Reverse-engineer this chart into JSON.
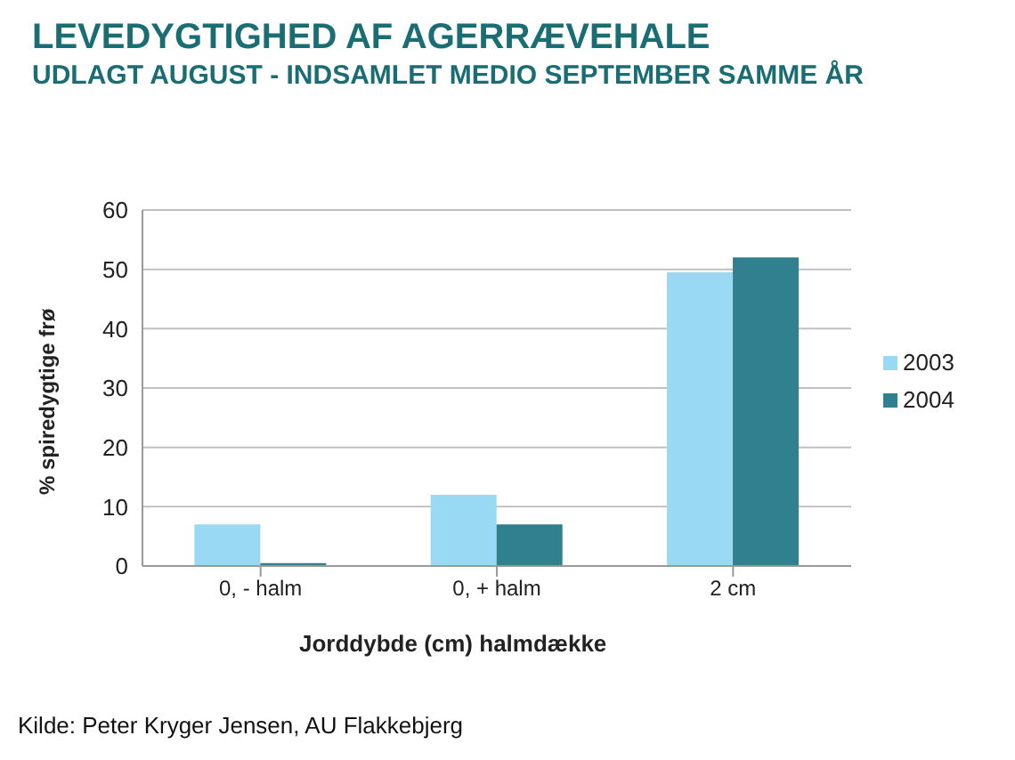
{
  "chart_data": {
    "type": "bar",
    "title": "LEVEDYGTIGHED AF AGERRÆVEHALE",
    "subtitle": "UDLAGT AUGUST - INDSAMLET MEDIO SEPTEMBER SAMME ÅR",
    "xlabel": "Jorddybde (cm) halmdække",
    "ylabel": "% spiredygtige frø",
    "categories": [
      "0, - halm",
      "0, + halm",
      "2 cm"
    ],
    "series": [
      {
        "name": "2003",
        "color": "#99d9f3",
        "values": [
          7,
          12,
          49.5
        ]
      },
      {
        "name": "2004",
        "color": "#31808f",
        "values": [
          0.5,
          7,
          52
        ]
      }
    ],
    "ylim": [
      0,
      60
    ],
    "yticks": [
      0,
      10,
      20,
      30,
      40,
      50,
      60
    ],
    "grid": "y",
    "legend": "right",
    "annotations": [
      "Kilde: Peter Kryger Jensen, AU Flakkebjerg"
    ]
  }
}
